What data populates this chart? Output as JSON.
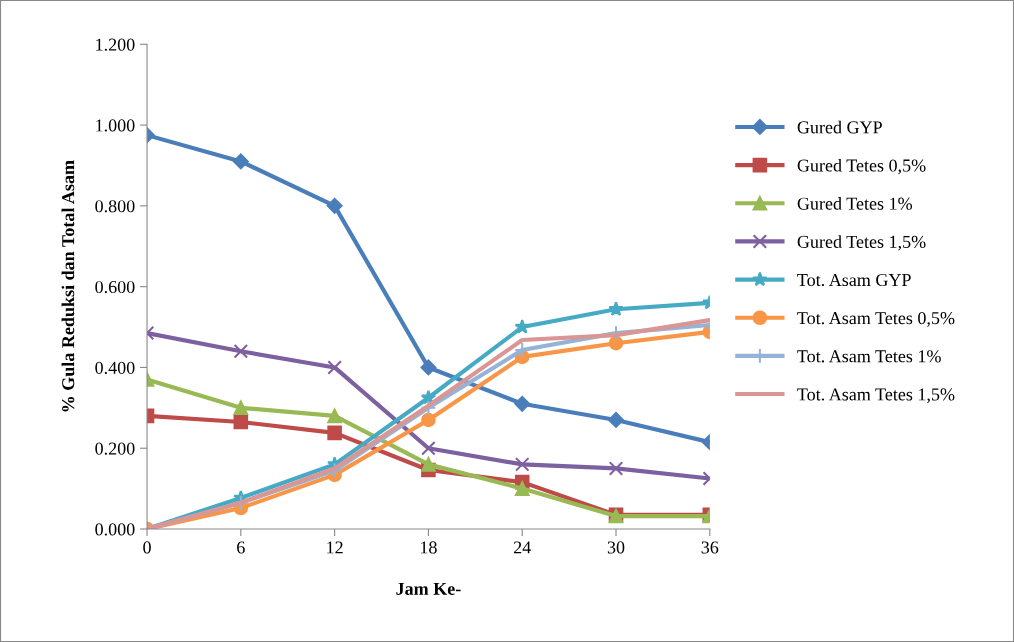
{
  "chart_data": {
    "type": "line",
    "xlabel": "Jam Ke-",
    "ylabel": "% Gula Reduksi dan Total Asam",
    "x": [
      0,
      6,
      12,
      18,
      24,
      30,
      36
    ],
    "xlim": [
      0,
      36
    ],
    "xticks": [
      0,
      6,
      12,
      18,
      24,
      30,
      36
    ],
    "ylim": [
      0,
      1.2
    ],
    "yticks": [
      {
        "value": 0,
        "label": "0.000"
      },
      {
        "value": 0.2,
        "label": "0.200"
      },
      {
        "value": 0.4,
        "label": "0.400"
      },
      {
        "value": 0.6,
        "label": "0.600"
      },
      {
        "value": 0.8,
        "label": "0.800"
      },
      {
        "value": 1.0,
        "label": "1.000"
      },
      {
        "value": 1.2,
        "label": "1.200"
      }
    ],
    "grid": false,
    "legend": "right",
    "line_style": "solid",
    "series": [
      {
        "name": "Gured GYP",
        "color": "#4a7ebb",
        "marker": "diamond",
        "values": [
          0.975,
          0.91,
          0.8,
          0.4,
          0.31,
          0.27,
          0.215
        ]
      },
      {
        "name": "Gured Tetes 0,5%",
        "color": "#be4b48",
        "marker": "square",
        "values": [
          0.28,
          0.265,
          0.238,
          0.146,
          0.116,
          0.035,
          0.035
        ]
      },
      {
        "name": "Gured Tetes 1%",
        "color": "#98b954",
        "marker": "triangle",
        "values": [
          0.37,
          0.3,
          0.28,
          0.16,
          0.1,
          0.032,
          0.032
        ]
      },
      {
        "name": "Gured Tetes 1,5%",
        "color": "#7d60a0",
        "marker": "cross",
        "values": [
          0.485,
          0.44,
          0.4,
          0.2,
          0.16,
          0.15,
          0.125
        ]
      },
      {
        "name": "Tot. Asam GYP",
        "color": "#46aac5",
        "marker": "star",
        "values": [
          0,
          0.077,
          0.16,
          0.325,
          0.5,
          0.544,
          0.56
        ]
      },
      {
        "name": "Tot. Asam Tetes 0,5%",
        "color": "#f79646",
        "marker": "circle",
        "values": [
          0,
          0.052,
          0.134,
          0.27,
          0.426,
          0.46,
          0.488
        ]
      },
      {
        "name": "Tot. Asam Tetes 1%",
        "color": "#95b3d7",
        "marker": "plus",
        "values": [
          0,
          0.065,
          0.145,
          0.3,
          0.443,
          0.485,
          0.505
        ]
      },
      {
        "name": "Tot. Asam Tetes 1,5%",
        "color": "#d99694",
        "marker": "none",
        "values": [
          0,
          0.065,
          0.15,
          0.305,
          0.468,
          0.48,
          0.517
        ]
      }
    ]
  }
}
